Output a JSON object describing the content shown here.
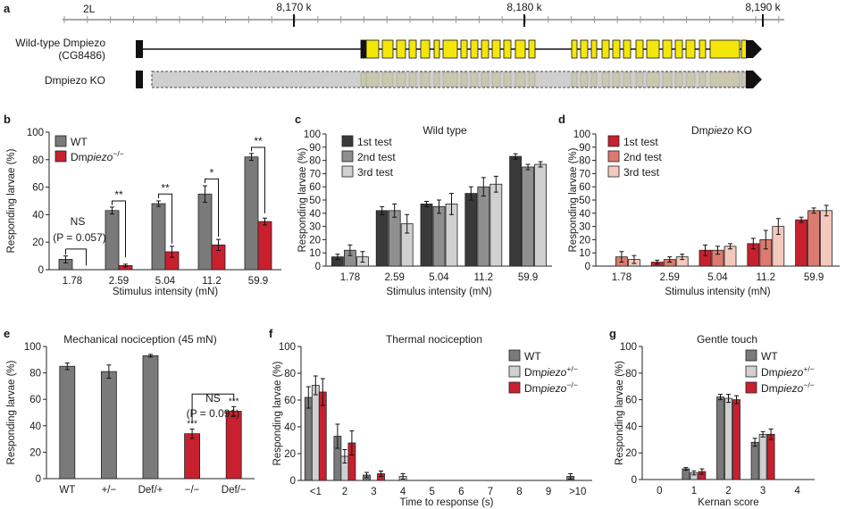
{
  "colors": {
    "wt_gray": "#7a7a7a",
    "dark": "#3a3a3a",
    "mid": "#8f8f8f",
    "light": "#d0d0d0",
    "ko_red": "#c8202f",
    "ko_mid": "#dc7a70",
    "ko_light": "#f4c9bd",
    "exon_yellow": "#f5e60a",
    "ko_box": "#cfcfcf"
  },
  "panel_a": {
    "label": "a",
    "chrom": "2L",
    "ticks": [
      "8,170 k",
      "8,180 k",
      "8,190 k"
    ],
    "wt_label_1": "Wild-type Dmpiezo",
    "wt_label_2": "(CG8486)",
    "ko_label": "Dmpiezo  KO"
  },
  "chart_data": [
    {
      "id": "b",
      "type": "bar",
      "label": "b",
      "title": "",
      "xlabel": "Stimulus intensity (mN)",
      "ylabel": "Responding larvae (%)",
      "ylim": [
        0,
        100
      ],
      "yticks": [
        "0",
        "20",
        "40",
        "60",
        "80",
        "100"
      ],
      "categories": [
        "1.78",
        "2.59",
        "5.04",
        "11.2",
        "59.9"
      ],
      "series": [
        {
          "name": "WT",
          "color": "#7a7a7a",
          "values": [
            7.5,
            43,
            48,
            55,
            82
          ],
          "err": [
            2.5,
            2.5,
            2.0,
            6,
            2.5
          ]
        },
        {
          "name": "Dmpiezo−/−",
          "color": "#c8202f",
          "values": [
            0,
            3,
            13,
            18,
            35
          ],
          "err": [
            0,
            1.0,
            4,
            4,
            2.5
          ]
        }
      ],
      "annotations": [
        "NS",
        "(P = 0.057)",
        "**",
        "**",
        "*",
        "**"
      ]
    },
    {
      "id": "c",
      "type": "bar",
      "label": "c",
      "title": "Wild type",
      "xlabel": "Stimulus intensity (mN)",
      "ylabel": "Responding larvae (%)",
      "ylim": [
        0,
        100
      ],
      "yticks": [
        "0",
        "10",
        "20",
        "30",
        "40",
        "50",
        "60",
        "70",
        "80",
        "90",
        "100"
      ],
      "categories": [
        "1.78",
        "2.59",
        "5.04",
        "11.2",
        "59.9"
      ],
      "series": [
        {
          "name": "1st test",
          "color": "#3a3a3a",
          "values": [
            7,
            42,
            47,
            55,
            83
          ],
          "err": [
            2,
            3,
            2,
            5,
            2
          ]
        },
        {
          "name": "2nd test",
          "color": "#8f8f8f",
          "values": [
            12,
            42,
            45,
            60,
            75
          ],
          "err": [
            4,
            5,
            5,
            7,
            2
          ]
        },
        {
          "name": "3rd test",
          "color": "#d0d0d0",
          "values": [
            7,
            32,
            47,
            62,
            77
          ],
          "err": [
            4,
            7,
            8,
            6,
            2
          ]
        }
      ]
    },
    {
      "id": "d",
      "type": "bar",
      "label": "d",
      "title": "Dmpiezo KO",
      "xlabel": "Stimulus intensity (mN)",
      "ylabel": "Responding larvae (%)",
      "ylim": [
        0,
        100
      ],
      "yticks": [
        "0",
        "10",
        "20",
        "30",
        "40",
        "50",
        "60",
        "70",
        "80",
        "90",
        "100"
      ],
      "categories": [
        "1.78",
        "2.59",
        "5.04",
        "11.2",
        "59.9"
      ],
      "series": [
        {
          "name": "1st test",
          "color": "#c8202f",
          "values": [
            0,
            3,
            12,
            17,
            35
          ],
          "err": [
            0,
            1.5,
            4,
            4,
            2
          ]
        },
        {
          "name": "2nd test",
          "color": "#dc7a70",
          "values": [
            7,
            5,
            12,
            20,
            42
          ],
          "err": [
            4,
            2,
            3,
            7,
            2
          ]
        },
        {
          "name": "3rd test",
          "color": "#f4c9bd",
          "values": [
            5,
            7,
            15,
            30,
            42
          ],
          "err": [
            3,
            2,
            2,
            6,
            4
          ]
        }
      ]
    },
    {
      "id": "e",
      "type": "bar",
      "label": "e",
      "title": "Mechanical nociception (45 mN)",
      "xlabel": "",
      "ylabel": "Responding larvae (%)",
      "ylim": [
        0,
        100
      ],
      "yticks": [
        "0",
        "20",
        "40",
        "60",
        "80",
        "100"
      ],
      "categories": [
        "WT",
        "+/−",
        "Def/+",
        "−/−",
        "Def/−"
      ],
      "values": [
        85,
        81,
        93,
        34,
        51
      ],
      "err": [
        2.5,
        5,
        1,
        3.5,
        3.5
      ],
      "colors": [
        "#7a7a7a",
        "#7a7a7a",
        "#7a7a7a",
        "#c8202f",
        "#c8202f"
      ],
      "annotations": [
        "***",
        "***",
        "NS",
        "(P = 0.091)"
      ]
    },
    {
      "id": "f",
      "type": "bar",
      "label": "f",
      "title": "Thermal nociception",
      "xlabel": "Time to response (s)",
      "ylabel": "Responding larvae (%)",
      "ylim": [
        0,
        100
      ],
      "yticks": [
        "0",
        "20",
        "40",
        "60",
        "80",
        "100"
      ],
      "categories": [
        "<1",
        "2",
        "3",
        "4",
        "5",
        "6",
        "7",
        "8",
        "9",
        ">10"
      ],
      "series": [
        {
          "name": "WT",
          "color": "#7a7a7a",
          "values": [
            62,
            33,
            4,
            0,
            0,
            0,
            0,
            0,
            0,
            3
          ],
          "err": [
            8,
            9,
            2,
            0,
            0,
            0,
            0,
            0,
            0,
            2
          ]
        },
        {
          "name": "Dmpiezo+/−",
          "color": "#d0d0d0",
          "values": [
            71,
            18,
            0,
            3,
            0,
            0,
            0,
            0,
            0,
            0
          ],
          "err": [
            7,
            5,
            0,
            2,
            0,
            0,
            0,
            0,
            0,
            0
          ]
        },
        {
          "name": "Dmpiezo−/−",
          "color": "#c8202f",
          "values": [
            66,
            28,
            5,
            0,
            0,
            0,
            0,
            0,
            0,
            0
          ],
          "err": [
            10,
            9,
            2,
            0,
            0,
            0,
            0,
            0,
            0,
            0
          ]
        }
      ]
    },
    {
      "id": "g",
      "type": "bar",
      "label": "g",
      "title": "Gentle touch",
      "xlabel": "Kernan score",
      "ylabel": "Responding larvae (%)",
      "ylim": [
        0,
        100
      ],
      "yticks": [
        "0",
        "20",
        "40",
        "60",
        "80",
        "100"
      ],
      "categories": [
        "0",
        "1",
        "2",
        "3",
        "4"
      ],
      "series": [
        {
          "name": "WT",
          "color": "#7a7a7a",
          "values": [
            0,
            8,
            62,
            28,
            0
          ],
          "err": [
            0,
            1,
            2,
            3,
            0
          ]
        },
        {
          "name": "Dmpiezo+/−",
          "color": "#d0d0d0",
          "values": [
            0,
            5,
            61,
            34,
            0
          ],
          "err": [
            0,
            1.5,
            3,
            2,
            0
          ]
        },
        {
          "name": "Dmpiezo−/−",
          "color": "#c8202f",
          "values": [
            0,
            6,
            60,
            34,
            0
          ],
          "err": [
            0,
            2,
            3,
            4,
            0
          ]
        }
      ]
    }
  ]
}
